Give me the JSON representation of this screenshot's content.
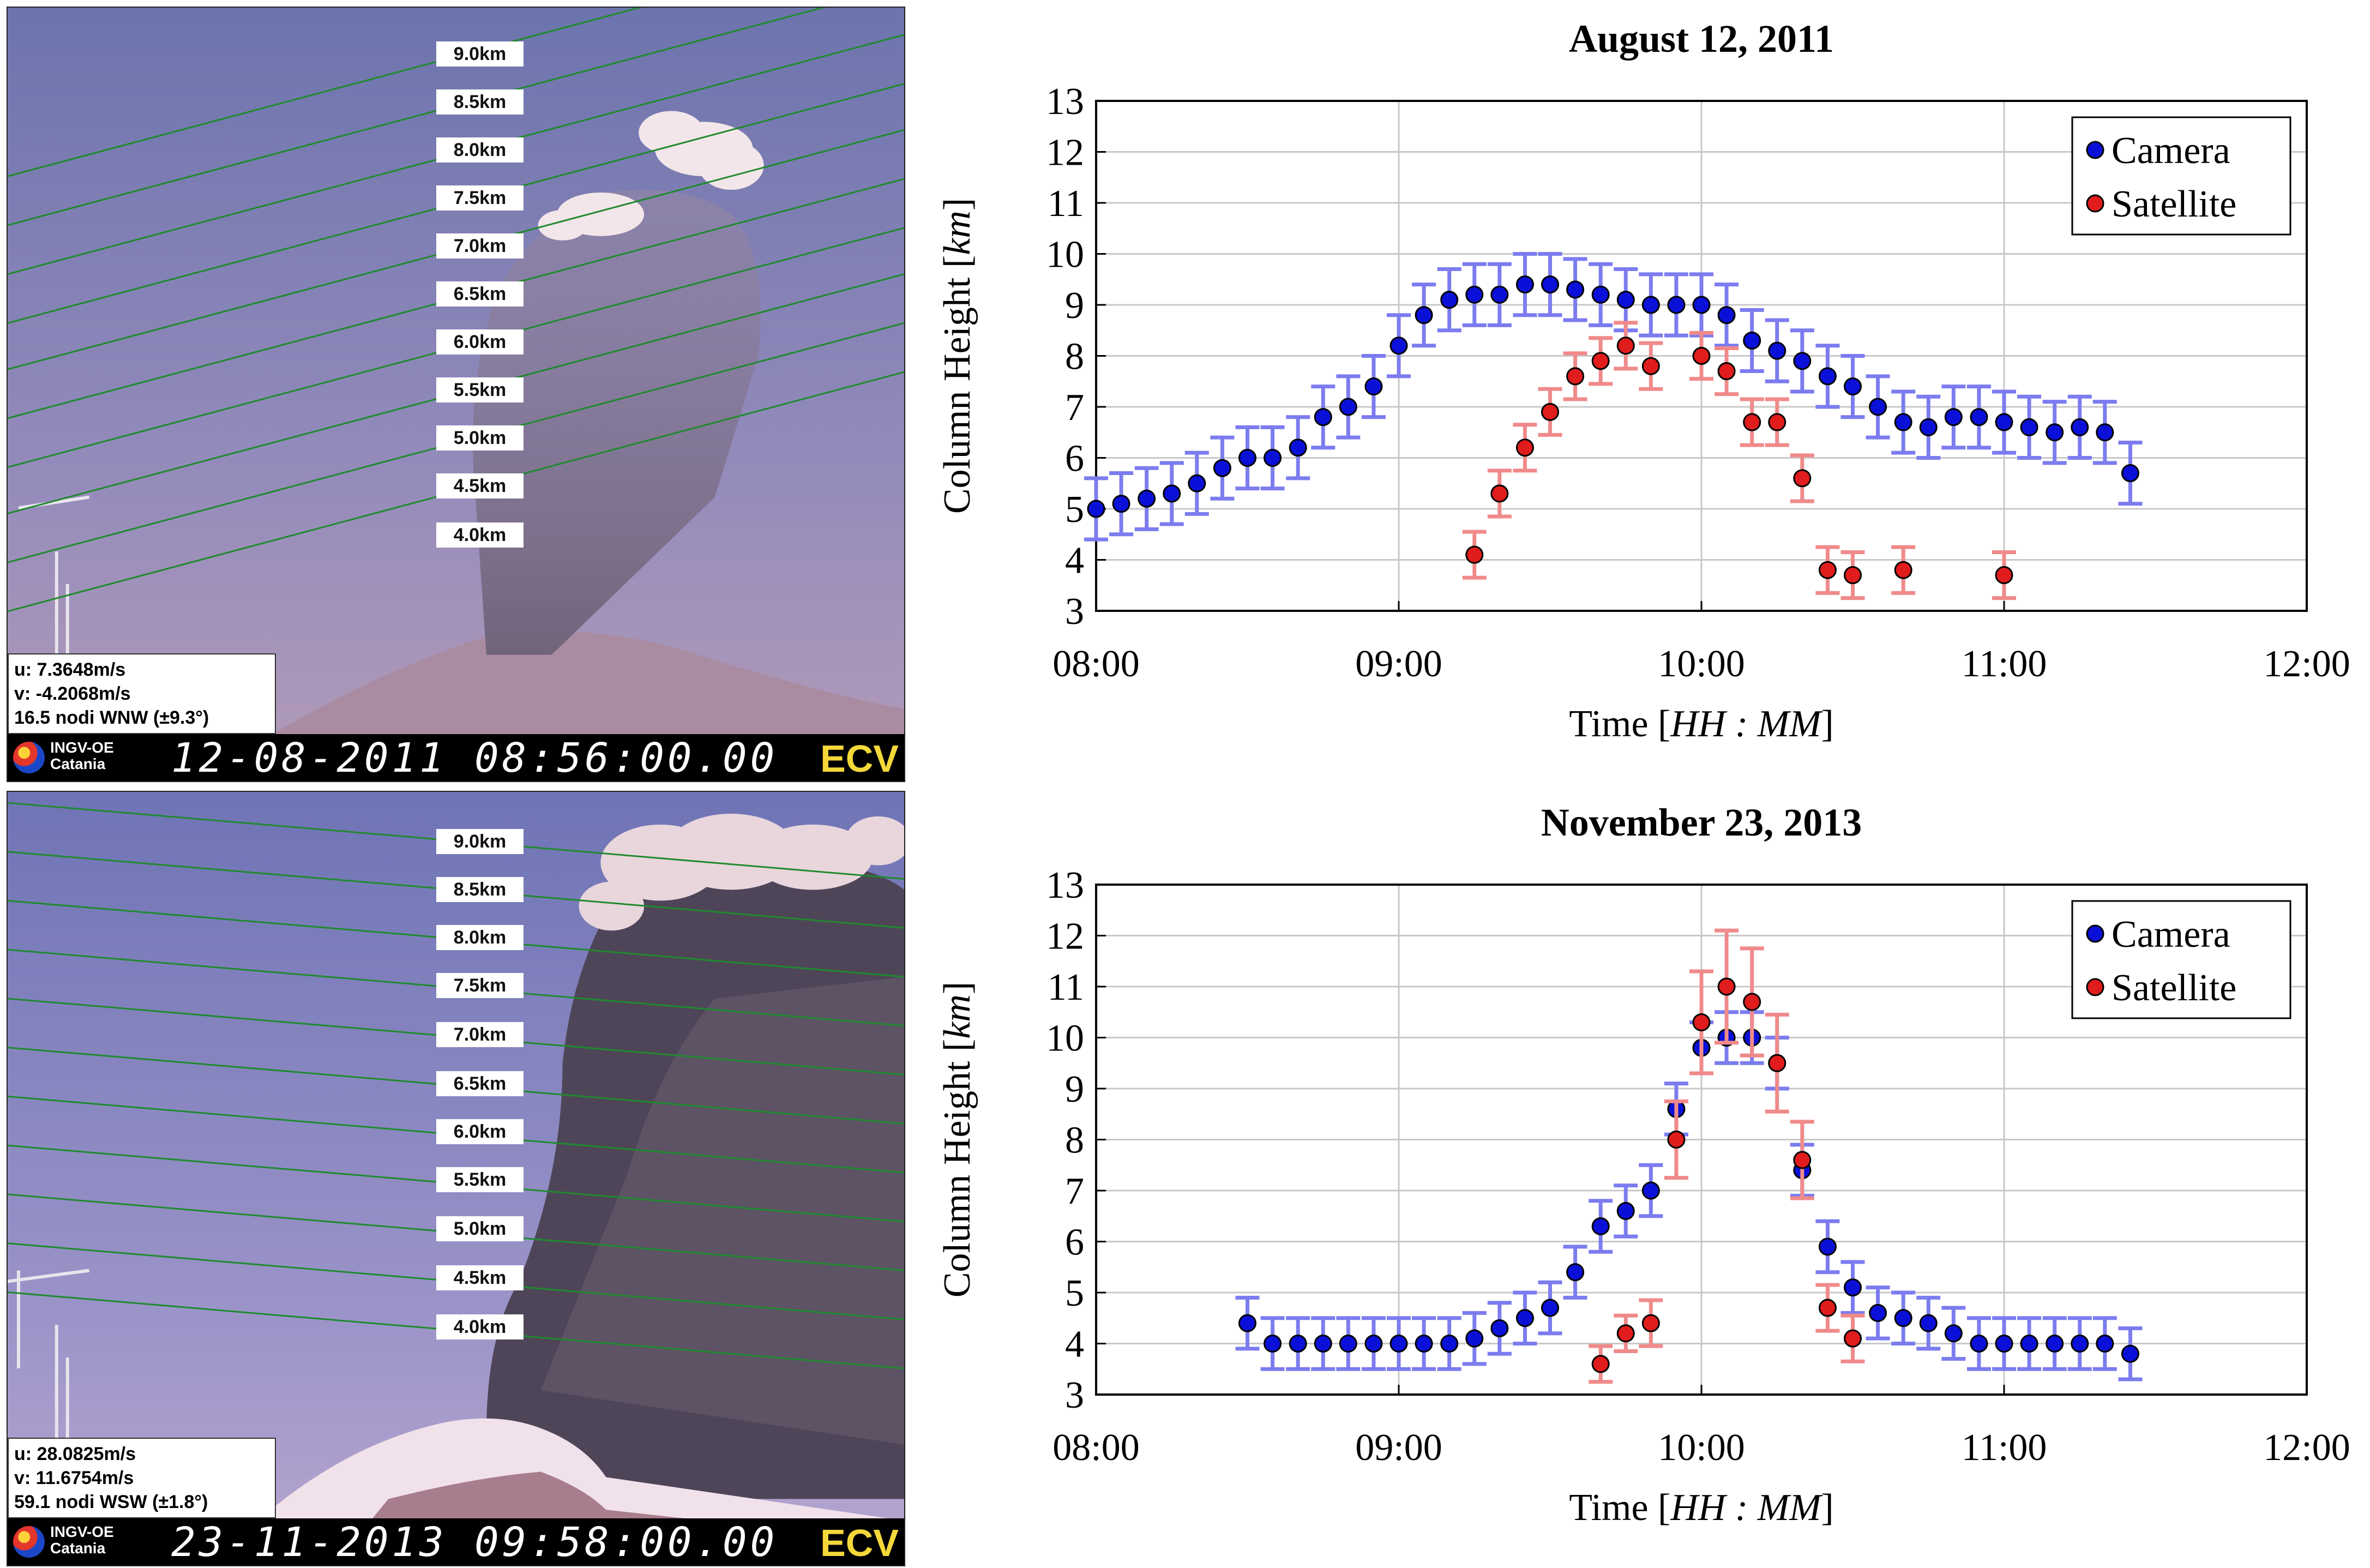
{
  "camera_panels": [
    {
      "height_labels": [
        "9.0km",
        "8.5km",
        "8.0km",
        "7.5km",
        "7.0km",
        "6.5km",
        "6.0km",
        "5.5km",
        "5.0km",
        "4.5km",
        "4.0km"
      ],
      "wind": [
        "u: 7.3648m/s",
        "v: -4.2068m/s",
        "16.5 nodi WNW (±9.3°)"
      ],
      "logo_text": [
        "INGV-OE",
        "Catania"
      ],
      "timestamp": "12-08-2011  08:56:00.00",
      "station": "ECV",
      "colors": {
        "sky_top": "#6d74ad",
        "sky_bottom": "#b39bb8",
        "plume": "#7c6f86",
        "cloud": "#f3e6ea",
        "gridline": "#1f8a2e"
      }
    },
    {
      "height_labels": [
        "9.0km",
        "8.5km",
        "8.0km",
        "7.5km",
        "7.0km",
        "6.5km",
        "6.0km",
        "5.5km",
        "5.0km",
        "4.5km",
        "4.0km"
      ],
      "wind": [
        "u: 28.0825m/s",
        "v: 11.6754m/s",
        "59.1 nodi WSW (±1.8°)"
      ],
      "logo_text": [
        "INGV-OE",
        "Catania"
      ],
      "timestamp": "23-11-2013  09:58:00.00",
      "station": "ECV",
      "colors": {
        "sky_top": "#6f74b5",
        "sky_bottom": "#b7a6cf",
        "plume": "#4e4658",
        "cloud": "#e8d6dc",
        "gridline": "#1f8a2e"
      }
    }
  ],
  "chart_data": [
    {
      "type": "scatter",
      "title": "August 12, 2011",
      "xlabel": "Time [",
      "xlabel_math": "HH : MM",
      "ylabel": "Column Height [",
      "ylabel_math": "km",
      "x_ticks": [
        "08:00",
        "09:00",
        "10:00",
        "11:00",
        "12:00"
      ],
      "xlim_hours": [
        8,
        12
      ],
      "ylim": [
        3,
        13
      ],
      "y_ticks": [
        3,
        4,
        5,
        6,
        7,
        8,
        9,
        10,
        11,
        12,
        13
      ],
      "legend_position": "top-right",
      "series": [
        {
          "name": "Camera",
          "color": "#0a10d8",
          "err_color": "#7c7cf0",
          "err": 0.6,
          "x": [
            8.0,
            8.083,
            8.167,
            8.25,
            8.333,
            8.417,
            8.5,
            8.583,
            8.667,
            8.75,
            8.833,
            8.917,
            9.0,
            9.083,
            9.167,
            9.25,
            9.333,
            9.417,
            9.5,
            9.583,
            9.667,
            9.75,
            9.833,
            9.917,
            10.0,
            10.083,
            10.167,
            10.25,
            10.333,
            10.417,
            10.5,
            10.583,
            10.667,
            10.75,
            10.833,
            10.917,
            11.0,
            11.083,
            11.167,
            11.25,
            11.333,
            11.417
          ],
          "y": [
            5.0,
            5.1,
            5.2,
            5.3,
            5.5,
            5.8,
            6.0,
            6.0,
            6.2,
            6.8,
            7.0,
            7.4,
            8.2,
            8.8,
            9.1,
            9.2,
            9.2,
            9.4,
            9.4,
            9.3,
            9.2,
            9.1,
            9.0,
            9.0,
            9.0,
            8.8,
            8.3,
            8.1,
            7.9,
            7.6,
            7.4,
            7.0,
            6.7,
            6.6,
            6.8,
            6.8,
            6.7,
            6.6,
            6.5,
            6.6,
            6.5,
            5.7
          ]
        },
        {
          "name": "Satellite",
          "color": "#e01c1c",
          "err_color": "#f08a8a",
          "err": 0.45,
          "x": [
            9.25,
            9.333,
            9.417,
            9.5,
            9.583,
            9.667,
            9.75,
            9.833,
            10.0,
            10.083,
            10.167,
            10.25,
            10.333,
            10.417,
            10.5,
            10.667,
            11.0
          ],
          "y": [
            4.1,
            5.3,
            6.2,
            6.9,
            7.6,
            7.9,
            8.2,
            7.8,
            8.0,
            7.7,
            6.7,
            6.7,
            5.6,
            3.8,
            3.7,
            3.8,
            3.7
          ]
        }
      ]
    },
    {
      "type": "scatter",
      "title": "November 23, 2013",
      "xlabel": "Time [",
      "xlabel_math": "HH : MM",
      "ylabel": "Column Height [",
      "ylabel_math": "km",
      "x_ticks": [
        "08:00",
        "09:00",
        "10:00",
        "11:00",
        "12:00"
      ],
      "xlim_hours": [
        8,
        12
      ],
      "ylim": [
        3,
        13
      ],
      "y_ticks": [
        3,
        4,
        5,
        6,
        7,
        8,
        9,
        10,
        11,
        12,
        13
      ],
      "legend_position": "top-right",
      "series": [
        {
          "name": "Camera",
          "color": "#0a10d8",
          "err_color": "#7c7cf0",
          "err": 0.5,
          "x": [
            8.5,
            8.583,
            8.667,
            8.75,
            8.833,
            8.917,
            9.0,
            9.083,
            9.167,
            9.25,
            9.333,
            9.417,
            9.5,
            9.583,
            9.667,
            9.75,
            9.833,
            9.917,
            10.0,
            10.083,
            10.167,
            10.25,
            10.333,
            10.417,
            10.5,
            10.583,
            10.667,
            10.75,
            10.833,
            10.917,
            11.0,
            11.083,
            11.167,
            11.25,
            11.333,
            11.417
          ],
          "y": [
            4.4,
            4.0,
            4.0,
            4.0,
            4.0,
            4.0,
            4.0,
            4.0,
            4.0,
            4.1,
            4.3,
            4.5,
            4.7,
            5.4,
            6.3,
            6.6,
            7.0,
            8.6,
            9.8,
            10.0,
            10.0,
            9.5,
            7.4,
            5.9,
            5.1,
            4.6,
            4.5,
            4.4,
            4.2,
            4.0,
            4.0,
            4.0,
            4.0,
            4.0,
            4.0,
            3.8
          ]
        },
        {
          "name": "Satellite",
          "color": "#e01c1c",
          "err_color": "#f08a8a",
          "err": 0.35,
          "x": [
            9.667,
            9.75,
            9.833,
            9.917,
            10.0,
            10.083,
            10.167,
            10.25,
            10.333,
            10.417,
            10.5
          ],
          "y": [
            3.6,
            4.2,
            4.4,
            8.0,
            10.3,
            11.0,
            10.7,
            9.5,
            7.6,
            4.7,
            4.1
          ],
          "err_list": [
            0.35,
            0.35,
            0.45,
            0.75,
            1.0,
            1.1,
            1.05,
            0.95,
            0.75,
            0.45,
            0.45
          ]
        }
      ]
    }
  ]
}
